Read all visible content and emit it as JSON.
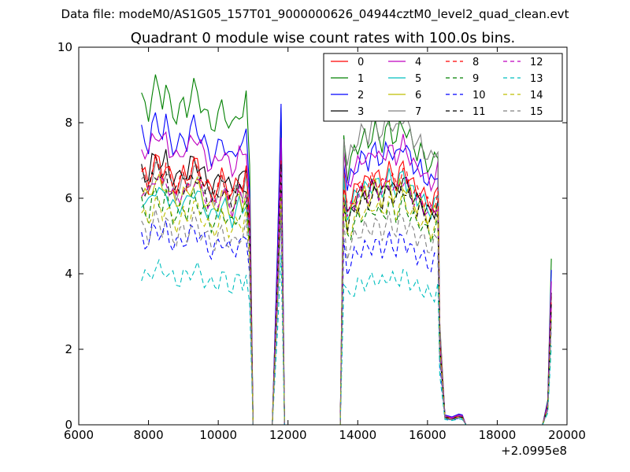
{
  "header": {
    "data_file": "Data file: modeM0/AS1G05_157T01_9000000626_04944cztM0_level2_quad_clean.evt"
  },
  "chart_data": {
    "type": "line",
    "title": "Quadrant 0 module wise count rates with 100.0s bins.",
    "xlabel": "",
    "ylabel": "",
    "x_offset_label": "+2.0995e8",
    "xlim": [
      6000,
      20000
    ],
    "ylim": [
      0,
      10
    ],
    "x_ticks": [
      6000,
      8000,
      10000,
      12000,
      14000,
      16000,
      18000,
      20000
    ],
    "y_ticks": [
      0,
      2,
      4,
      6,
      8,
      10
    ],
    "x_tick_labels": [
      "6000",
      "8000",
      "10000",
      "12000",
      "14000",
      "16000",
      "18000",
      "20000"
    ],
    "y_tick_labels": [
      "0",
      "2",
      "4",
      "6",
      "8",
      "10"
    ],
    "grid": false,
    "legend_position": "top-right",
    "legend_columns": 4,
    "segment_template": {
      "seg1": {
        "x0": 7800,
        "x1": 10800,
        "profile": [
          1.0,
          0.98,
          0.96,
          1.02,
          1.05,
          1.03,
          1.0,
          1.04,
          0.99,
          0.96,
          0.95,
          0.97,
          0.99,
          0.97,
          1.01,
          1.04,
          1.02,
          0.99,
          0.97,
          0.94,
          0.92,
          0.93,
          0.95,
          0.98,
          0.96,
          0.93,
          0.91,
          0.94,
          0.97,
          0.95,
          1.0
        ]
      },
      "seg2": {
        "x0": 13600,
        "x1": 16300,
        "profile": [
          1.0,
          0.88,
          0.92,
          0.95,
          0.97,
          0.99,
          1.0,
          0.98,
          1.01,
          1.03,
          1.0,
          0.98,
          1.02,
          1.04,
          1.01,
          0.99,
          1.03,
          1.05,
          1.02,
          1.0,
          0.97,
          0.95,
          0.96,
          0.93,
          0.91,
          0.9,
          0.92,
          0.95
        ]
      }
    },
    "series": [
      {
        "name": "0",
        "color": "#ff0000",
        "dash": "solid",
        "level1": 6.7,
        "level2": 6.5,
        "p1": 7.2,
        "p2": 7.0,
        "tail": 0.22,
        "spike": 3.4
      },
      {
        "name": "1",
        "color": "#008000",
        "dash": "solid",
        "level1": 8.6,
        "level2": 7.6,
        "p1": 8.4,
        "p2": 8.2,
        "tail": 0.24,
        "spike": 4.4
      },
      {
        "name": "2",
        "color": "#0000ff",
        "dash": "solid",
        "level1": 7.7,
        "level2": 7.1,
        "p1": 8.5,
        "p2": 7.4,
        "tail": 0.26,
        "spike": 4.1
      },
      {
        "name": "3",
        "color": "#000000",
        "dash": "solid",
        "level1": 6.8,
        "level2": 6.2,
        "p1": 7.3,
        "p2": 6.7,
        "tail": 0.2,
        "spike": 3.5
      },
      {
        "name": "4",
        "color": "#bf00bf",
        "dash": "solid",
        "level1": 7.4,
        "level2": 7.1,
        "p1": 7.6,
        "p2": 7.2,
        "tail": 0.24,
        "spike": 3.8
      },
      {
        "name": "5",
        "color": "#00bfbf",
        "dash": "solid",
        "level1": 6.0,
        "level2": 6.3,
        "p1": 6.8,
        "p2": 6.9,
        "tail": 0.18,
        "spike": 3.0
      },
      {
        "name": "6",
        "color": "#bfbf00",
        "dash": "solid",
        "level1": 6.2,
        "level2": 6.1,
        "p1": 6.6,
        "p2": 6.5,
        "tail": 0.2,
        "spike": 3.1
      },
      {
        "name": "7",
        "color": "#808080",
        "dash": "solid",
        "level1": 6.5,
        "level2": 7.8,
        "p1": 7.0,
        "p2": 7.6,
        "tail": 0.22,
        "spike": 3.3
      },
      {
        "name": "8",
        "color": "#ff0000",
        "dash": "dashed",
        "level1": 6.6,
        "level2": 6.4,
        "p1": 7.0,
        "p2": 6.9,
        "tail": 0.21,
        "spike": 3.3
      },
      {
        "name": "9",
        "color": "#008000",
        "dash": "dashed",
        "level1": 5.8,
        "level2": 5.6,
        "p1": 6.3,
        "p2": 6.2,
        "tail": 0.19,
        "spike": 2.9
      },
      {
        "name": "10",
        "color": "#0000ff",
        "dash": "dashed",
        "level1": 5.0,
        "level2": 4.7,
        "p1": 5.6,
        "p2": 5.4,
        "tail": 0.16,
        "spike": 2.6
      },
      {
        "name": "11",
        "color": "#000000",
        "dash": "dashed",
        "level1": 6.4,
        "level2": 6.0,
        "p1": 6.9,
        "p2": 6.5,
        "tail": 0.2,
        "spike": 3.2
      },
      {
        "name": "12",
        "color": "#bf00bf",
        "dash": "dashed",
        "level1": 6.3,
        "level2": 6.2,
        "p1": 6.7,
        "p2": 6.6,
        "tail": 0.21,
        "spike": 3.1
      },
      {
        "name": "13",
        "color": "#00bfbf",
        "dash": "dashed",
        "level1": 4.0,
        "level2": 3.8,
        "p1": 4.5,
        "p2": 4.3,
        "tail": 0.14,
        "spike": 2.1
      },
      {
        "name": "14",
        "color": "#bfbf00",
        "dash": "dashed",
        "level1": 5.6,
        "level2": 5.7,
        "p1": 6.0,
        "p2": 6.1,
        "tail": 0.18,
        "spike": 2.8
      },
      {
        "name": "15",
        "color": "#808080",
        "dash": "dashed",
        "level1": 5.2,
        "level2": 5.2,
        "p1": 5.7,
        "p2": 5.6,
        "tail": 0.17,
        "spike": 2.7
      }
    ]
  }
}
